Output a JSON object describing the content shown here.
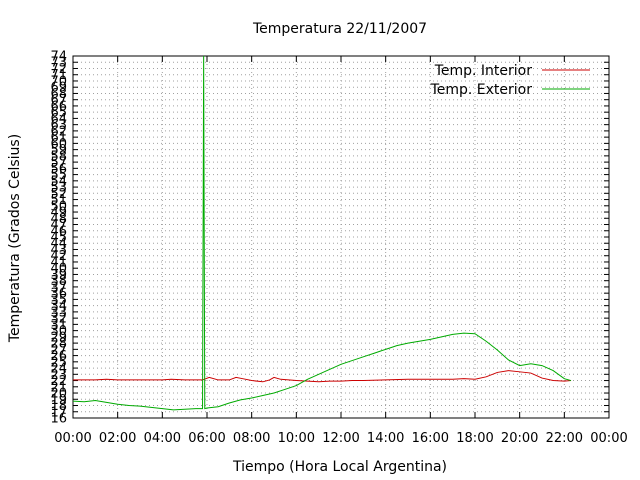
{
  "chart_data": {
    "type": "line",
    "title": "Temperatura 22/11/2007",
    "xlabel": "Tiempo (Hora Local Argentina)",
    "ylabel": "Temperatura (Grados Celsius)",
    "xlim": [
      0,
      24
    ],
    "ylim": [
      16,
      74
    ],
    "x_ticks": [
      "00:00",
      "02:00",
      "04:00",
      "06:00",
      "08:00",
      "10:00",
      "12:00",
      "14:00",
      "16:00",
      "18:00",
      "20:00",
      "22:00",
      "00:00"
    ],
    "y_ticks": [
      16,
      17,
      18,
      19,
      20,
      21,
      22,
      23,
      24,
      25,
      26,
      27,
      28,
      29,
      30,
      31,
      32,
      33,
      34,
      35,
      36,
      37,
      38,
      39,
      40,
      41,
      42,
      43,
      44,
      45,
      46,
      47,
      48,
      49,
      50,
      51,
      52,
      53,
      54,
      55,
      56,
      57,
      58,
      59,
      60,
      61,
      62,
      63,
      64,
      65,
      66,
      67,
      68,
      69,
      70,
      71,
      72,
      73,
      74
    ],
    "grid": true,
    "legend_position": "top-right",
    "series": [
      {
        "name": "Temp. Interior",
        "color": "#cc0000",
        "x": [
          0.0,
          1.0,
          1.5,
          2.0,
          3.0,
          4.0,
          4.4,
          5.0,
          5.8,
          6.1,
          6.5,
          7.0,
          7.3,
          7.6,
          8.0,
          8.5,
          8.8,
          9.0,
          9.3,
          10.0,
          10.5,
          11.0,
          11.5,
          12.0,
          12.5,
          13.0,
          14.0,
          15.0,
          16.0,
          17.0,
          17.5,
          18.0,
          18.5,
          19.0,
          19.5,
          20.0,
          20.5,
          21.0,
          21.5,
          22.0,
          22.3
        ],
        "y": [
          22.1,
          22.1,
          22.2,
          22.1,
          22.1,
          22.1,
          22.2,
          22.1,
          22.1,
          22.5,
          22.1,
          22.1,
          22.5,
          22.3,
          22.0,
          21.8,
          22.1,
          22.5,
          22.2,
          22.0,
          21.9,
          21.8,
          21.9,
          21.9,
          22.0,
          22.0,
          22.1,
          22.2,
          22.2,
          22.2,
          22.3,
          22.2,
          22.6,
          23.3,
          23.6,
          23.4,
          23.2,
          22.4,
          22.0,
          21.9,
          22.0
        ]
      },
      {
        "name": "Temp. Exterior",
        "color": "#00aa00",
        "x": [
          0.0,
          0.5,
          1.0,
          1.5,
          2.0,
          2.5,
          3.0,
          3.5,
          4.0,
          4.5,
          5.0,
          5.5,
          5.8,
          5.85,
          5.9,
          6.0,
          6.5,
          7.0,
          7.5,
          8.0,
          8.5,
          9.0,
          9.5,
          10.0,
          10.5,
          11.0,
          11.5,
          12.0,
          12.5,
          13.0,
          13.5,
          14.0,
          14.5,
          15.0,
          15.5,
          16.0,
          16.5,
          17.0,
          17.5,
          18.0,
          18.5,
          19.0,
          19.5,
          20.0,
          20.5,
          21.0,
          21.5,
          22.0,
          22.3
        ],
        "y": [
          18.7,
          18.6,
          18.8,
          18.5,
          18.2,
          18.0,
          17.9,
          17.7,
          17.5,
          17.3,
          17.4,
          17.5,
          17.5,
          74.0,
          17.5,
          17.6,
          17.8,
          18.4,
          18.9,
          19.2,
          19.6,
          20.0,
          20.6,
          21.2,
          22.2,
          23.0,
          23.8,
          24.6,
          25.2,
          25.8,
          26.4,
          27.0,
          27.6,
          28.0,
          28.3,
          28.6,
          29.0,
          29.4,
          29.6,
          29.5,
          28.3,
          26.9,
          25.3,
          24.4,
          24.7,
          24.4,
          23.6,
          22.3,
          22.0
        ]
      }
    ]
  }
}
